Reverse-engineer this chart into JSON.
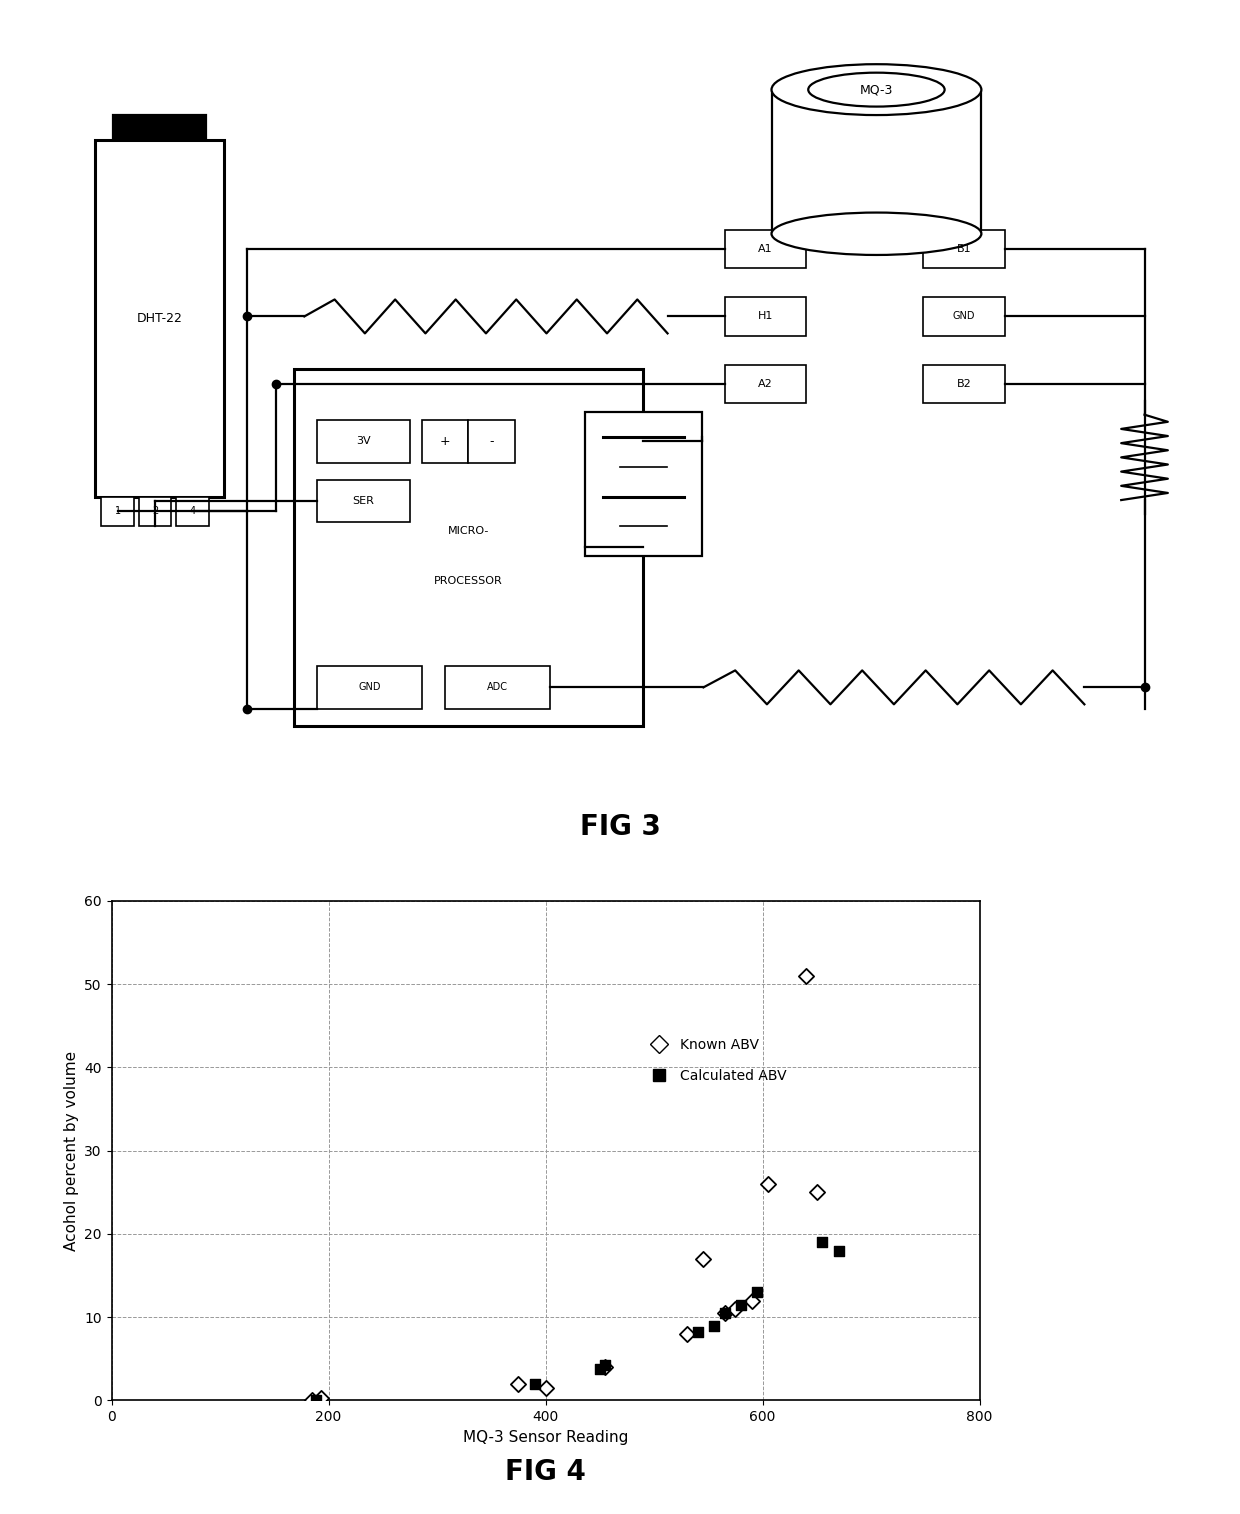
{
  "fig3_title": "FIG 3",
  "fig4_title": "FIG 4",
  "scatter_known_abv_x": [
    185,
    193,
    375,
    400,
    455,
    530,
    545,
    565,
    575,
    590,
    605,
    640,
    650
  ],
  "scatter_known_abv_y": [
    0,
    0.3,
    2,
    1.5,
    4,
    8,
    17,
    10.5,
    11,
    12,
    26,
    51,
    25
  ],
  "scatter_calc_abv_x": [
    188,
    390,
    450,
    455,
    540,
    555,
    565,
    580,
    595,
    655,
    670
  ],
  "scatter_calc_abv_y": [
    0,
    2,
    3.8,
    4.2,
    8.2,
    9,
    10.5,
    11.5,
    13,
    19,
    18
  ],
  "xlabel": "MQ-3 Sensor Reading",
  "ylabel": "Acohol percent by volume",
  "xlim": [
    0,
    800
  ],
  "ylim": [
    0,
    60
  ],
  "xticks": [
    0,
    200,
    400,
    600,
    800
  ],
  "yticks": [
    0,
    10,
    20,
    30,
    40,
    50,
    60
  ],
  "legend_known": "Known ABV",
  "legend_calc": "Calculated ABV",
  "background_color": "#ffffff",
  "grid_color": "#999999"
}
